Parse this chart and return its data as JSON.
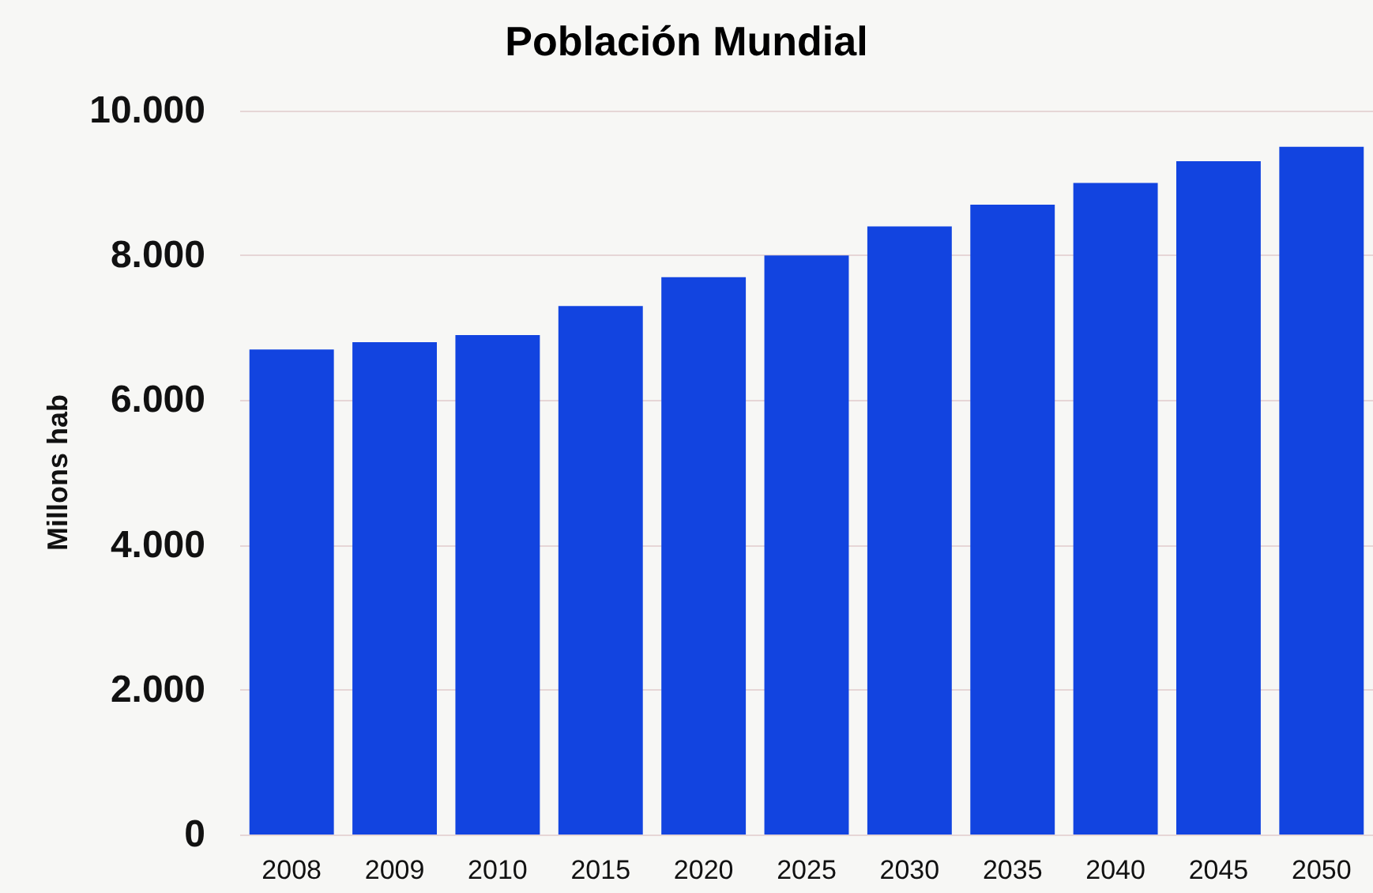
{
  "chart_data": {
    "type": "bar",
    "title": "Población Mundial",
    "ylabel": "Millons hab",
    "categories": [
      "2008",
      "2009",
      "2010",
      "2015",
      "2020",
      "2025",
      "2030",
      "2035",
      "2040",
      "2045",
      "2050"
    ],
    "values": [
      6700,
      6800,
      6900,
      7300,
      7700,
      8000,
      8400,
      8700,
      9000,
      9300,
      9500
    ],
    "color": "#1244e0",
    "ylim": [
      0,
      10000
    ],
    "yticks": [
      0,
      {
        "value": 2000,
        "label": "2.000"
      },
      {
        "value": 4000,
        "label": "4.000"
      },
      {
        "value": 6000,
        "label": "6.000"
      },
      {
        "value": 8000,
        "label": "8.000"
      },
      {
        "value": 10000,
        "label": "10.000"
      }
    ],
    "grid": "y"
  }
}
